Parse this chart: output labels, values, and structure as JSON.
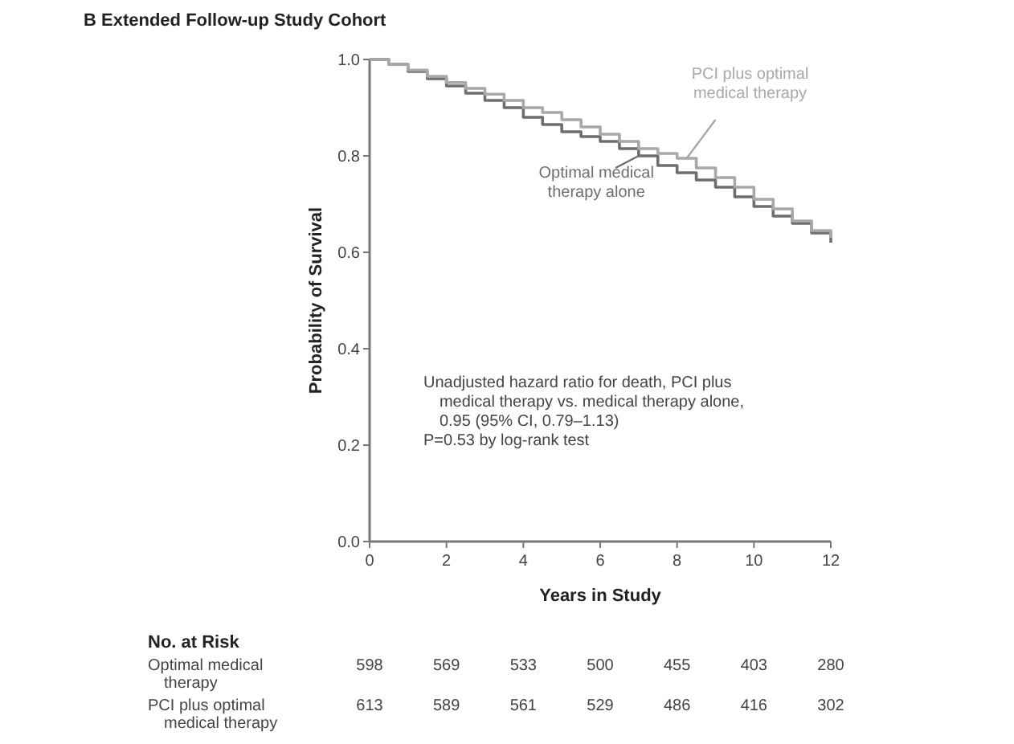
{
  "chart_data": {
    "type": "step",
    "title": "B  Extended Follow-up Study Cohort",
    "xlabel": "Years in Study",
    "ylabel": "Probability of Survival",
    "xlim": [
      0,
      12
    ],
    "xticks": [
      0,
      2,
      4,
      6,
      8,
      10,
      12
    ],
    "ylim": [
      0,
      1
    ],
    "yticks": [
      {
        "value": 0,
        "label": "0.0"
      },
      0.2,
      0.4,
      0.6,
      0.8,
      {
        "value": 1,
        "label": "1.0"
      }
    ],
    "grid": false,
    "x": [
      0,
      0.5,
      1,
      1.5,
      2,
      2.5,
      3,
      3.5,
      4,
      4.5,
      5,
      5.5,
      6,
      6.5,
      7,
      7.5,
      8,
      8.5,
      9,
      9.5,
      10,
      10.5,
      11,
      11.5,
      12
    ],
    "series": [
      {
        "name": "Optimal medical therapy alone",
        "color": "#6e6e6e",
        "values": [
          1,
          0.99,
          0.975,
          0.96,
          0.945,
          0.93,
          0.915,
          0.9,
          0.88,
          0.865,
          0.85,
          0.84,
          0.83,
          0.815,
          0.8,
          0.78,
          0.765,
          0.75,
          0.735,
          0.715,
          0.695,
          0.675,
          0.66,
          0.64,
          0.62
        ]
      },
      {
        "name": "PCI plus optimal medical therapy",
        "color": "#a8a8a8",
        "values": [
          1,
          0.99,
          0.978,
          0.965,
          0.952,
          0.94,
          0.928,
          0.915,
          0.9,
          0.89,
          0.875,
          0.86,
          0.845,
          0.83,
          0.815,
          0.805,
          0.795,
          0.775,
          0.755,
          0.735,
          0.71,
          0.69,
          0.665,
          0.645,
          0.63
        ]
      }
    ],
    "annotations": [
      "Unadjusted hazard ratio for death, PCI plus medical therapy vs. medical therapy alone, 0.95 (95% CI, 0.79–1.13)",
      "P=0.53 by log-rank test",
      "No. at Risk",
      "Optimal medical therapy",
      "598",
      "569",
      "533",
      "500",
      "455",
      "403",
      "280",
      "PCI plus optimal medical therapy",
      "613",
      "589",
      "561",
      "529",
      "486",
      "416",
      "302"
    ]
  }
}
